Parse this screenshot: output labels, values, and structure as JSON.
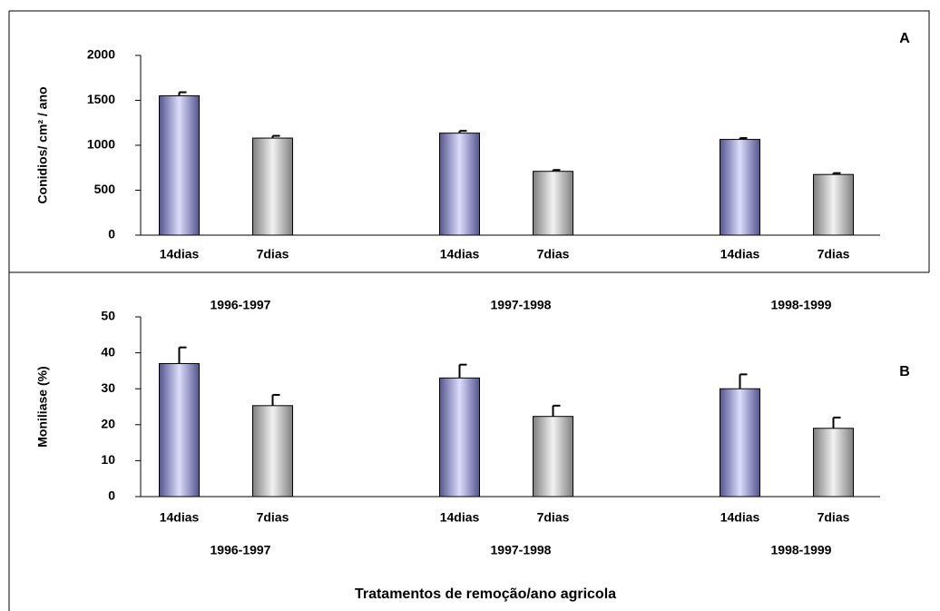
{
  "chart_data": [
    {
      "type": "bar",
      "panel_label": "A",
      "y_label": "Conidios/ cm² / ano",
      "categories": [
        "14dias",
        "7dias",
        null,
        "14dias",
        "7dias",
        null,
        "14dias",
        "7dias"
      ],
      "values": [
        1550,
        1080,
        0,
        1135,
        710,
        0,
        1065,
        675
      ],
      "errors": [
        40,
        25,
        null,
        25,
        15,
        null,
        15,
        15
      ],
      "colors": [
        "#8c8cf0",
        "#d4d4d4",
        "#d4d4d4",
        "#8c8cf0",
        "#d4d4d4",
        "#d4d4d4",
        "#8c8cf0",
        "#d4d4d4"
      ],
      "groups": [
        "1996-1997",
        "1997-1998",
        "1998-1999"
      ],
      "ylim": [
        0,
        2000
      ],
      "yticks": [
        0,
        500,
        1000,
        1500,
        2000
      ]
    },
    {
      "type": "bar",
      "panel_label": "B",
      "y_label": "Moniliase (%)",
      "x_label": "Tratamentos de remoção/ano agricola",
      "categories": [
        "14dias",
        "7dias",
        null,
        "14dias",
        "7dias",
        null,
        "14dias",
        "7dias"
      ],
      "values": [
        37,
        25.3,
        0,
        33,
        22.3,
        0,
        30,
        19
      ],
      "errors": [
        4.5,
        3,
        null,
        3.7,
        3,
        null,
        4,
        3
      ],
      "colors": [
        "#8c8cf0",
        "#d4d4d4",
        "#d4d4d4",
        "#8c8cf0",
        "#d4d4d4",
        "#d4d4d4",
        "#8c8cf0",
        "#d4d4d4"
      ],
      "groups": [
        "1996-1997",
        "1997-1998",
        "1998-1999"
      ],
      "ylim": [
        0,
        50
      ],
      "yticks": [
        0,
        10,
        20,
        30,
        40,
        50
      ]
    }
  ]
}
